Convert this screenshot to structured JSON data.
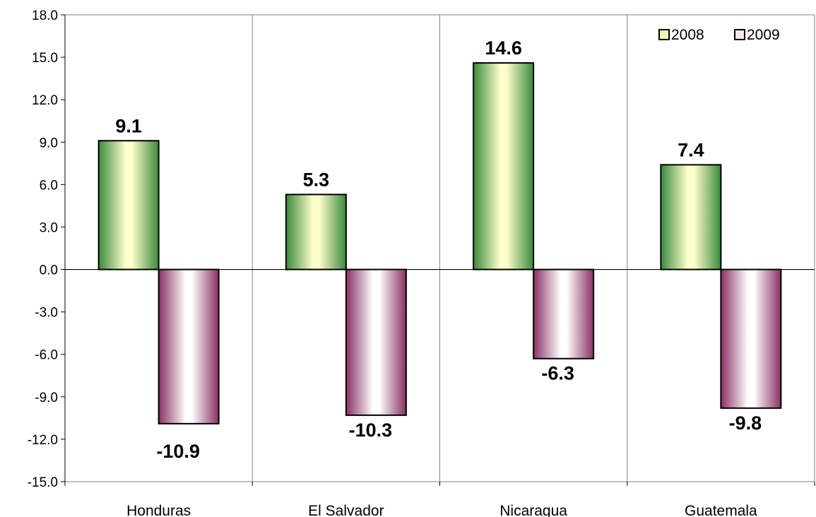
{
  "chart_data": {
    "type": "bar",
    "categories": [
      "Honduras",
      "El Salvador",
      "Nicaragua",
      "Guatemala"
    ],
    "series": [
      {
        "name": "2008",
        "values": [
          9.1,
          5.3,
          14.6,
          7.4
        ],
        "labels": [
          "9.1",
          "5.3",
          "14.6",
          "7.4"
        ]
      },
      {
        "name": "2009",
        "values": [
          -10.9,
          -10.3,
          -6.3,
          -9.8
        ],
        "labels": [
          "-10.9",
          "-10.3",
          "-6.3",
          "-9.8"
        ]
      }
    ],
    "ylim": [
      -15,
      18
    ],
    "yticks": [
      "18.0",
      "15.0",
      "12.0",
      "9.0",
      "6.0",
      "3.0",
      "0.0",
      "-3.0",
      "-6.0",
      "-9.0",
      "-12.0",
      "-15.0"
    ],
    "title": "",
    "xlabel": "",
    "ylabel": "",
    "grid": "vertical category separators",
    "legend_position": "top-right",
    "colors": {
      "series_2008_dark": "#3a8a3a",
      "series_2008_light": "#ffffcc",
      "series_2009_dark": "#8a2f63",
      "series_2009_light": "#ffffff",
      "axis": "#000000",
      "grid": "#808080"
    }
  }
}
